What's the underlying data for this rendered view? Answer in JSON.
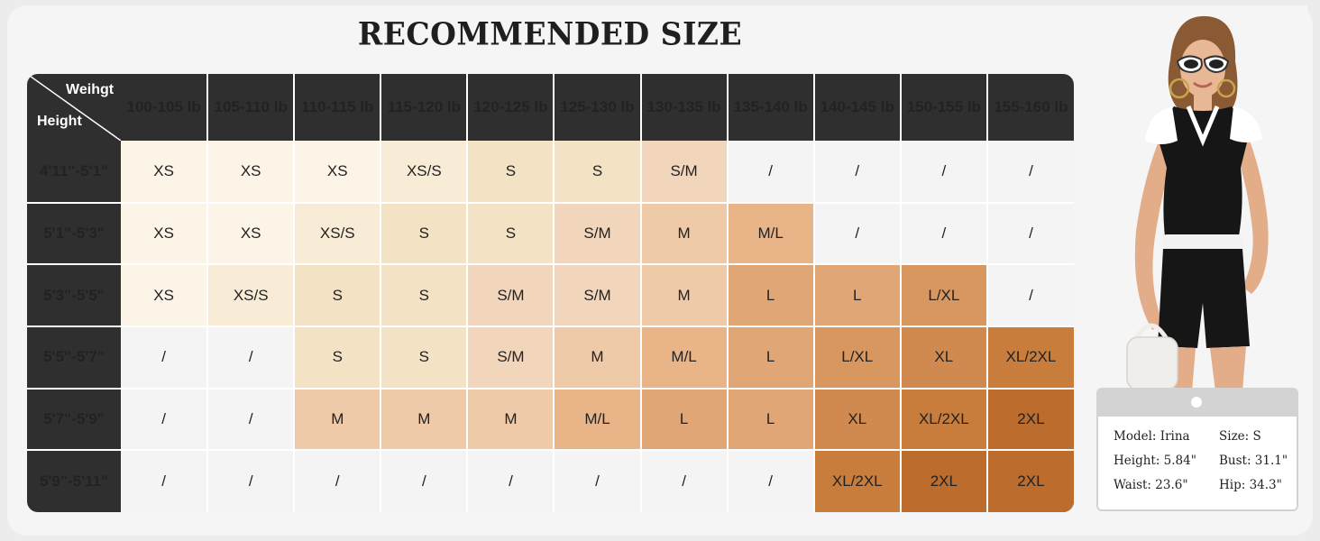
{
  "title": "RECOMMENDED SIZE",
  "corner": {
    "weight_label": "Weihgt",
    "height_label": "Height"
  },
  "weights": [
    "100-105 lb",
    "105-110 lb",
    "110-115 lb",
    "115-120 lb",
    "120-125 lb",
    "125-130 lb",
    "130-135 lb",
    "135-140 lb",
    "140-145 lb",
    "150-155 lb",
    "155-160 lb"
  ],
  "rows": [
    {
      "height": "4'11\"-5'1\"",
      "sizes": [
        "XS",
        "XS",
        "XS",
        "XS/S",
        "S",
        "S",
        "S/M",
        "/",
        "/",
        "/",
        "/"
      ]
    },
    {
      "height": "5'1\"-5'3\"",
      "sizes": [
        "XS",
        "XS",
        "XS/S",
        "S",
        "S",
        "S/M",
        "M",
        "M/L",
        "/",
        "/",
        "/"
      ]
    },
    {
      "height": "5'3\"-5'5\"",
      "sizes": [
        "XS",
        "XS/S",
        "S",
        "S",
        "S/M",
        "S/M",
        "M",
        "L",
        "L",
        "L/XL",
        "/"
      ]
    },
    {
      "height": "5'5\"-5'7\"",
      "sizes": [
        "/",
        "/",
        "S",
        "S",
        "S/M",
        "M",
        "M/L",
        "L",
        "L/XL",
        "XL",
        "XL/2XL"
      ]
    },
    {
      "height": "5'7\"-5'9\"",
      "sizes": [
        "/",
        "/",
        "M",
        "M",
        "M",
        "M/L",
        "L",
        "L",
        "XL",
        "XL/2XL",
        "2XL"
      ]
    },
    {
      "height": "5'9\"-5'11\"",
      "sizes": [
        "/",
        "/",
        "/",
        "/",
        "/",
        "/",
        "/",
        "/",
        "XL/2XL",
        "2XL",
        "2XL"
      ]
    }
  ],
  "size_colors": {
    "XS": "#fdf4e8",
    "XS/S": "#f9ecd7",
    "S": "#f3e2c3",
    "S/M": "#f2d6bc",
    "M": "#efcaa9",
    "M/L": "#e8b488",
    "L": "#e1a676",
    "L/XL": "#d8975f",
    "XL": "#d08a50",
    "XL/2XL": "#c97d3d",
    "2XL": "#bc6c2c",
    "/": "#f4f4f4"
  },
  "model": {
    "name_label": "Model: Irina",
    "size_label": "Size: S",
    "height_label": "Height: 5.84\"",
    "bust_label": "Bust: 31.1\"",
    "waist_label": "Waist: 23.6\"",
    "hip_label": "Hip: 34.3\""
  }
}
